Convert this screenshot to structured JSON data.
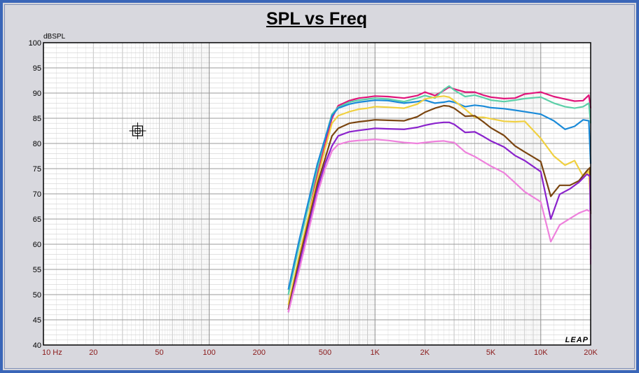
{
  "chart_data": {
    "type": "line",
    "title": "SPL vs Freq",
    "ylabel": "dBSPL",
    "xscale": "log",
    "xlim": [
      10,
      20000
    ],
    "ylim": [
      40,
      100
    ],
    "grid": true,
    "y_ticks": [
      40,
      45,
      50,
      55,
      60,
      65,
      70,
      75,
      80,
      85,
      90,
      95,
      100
    ],
    "x_ticks": [
      {
        "value": 10,
        "label": "10 Hz"
      },
      {
        "value": 20,
        "label": "20"
      },
      {
        "value": 50,
        "label": "50"
      },
      {
        "value": 100,
        "label": "100"
      },
      {
        "value": 200,
        "label": "200"
      },
      {
        "value": 500,
        "label": "500"
      },
      {
        "value": 1000,
        "label": "1K"
      },
      {
        "value": 2000,
        "label": "2K"
      },
      {
        "value": 5000,
        "label": "5K"
      },
      {
        "value": 10000,
        "label": "10K"
      },
      {
        "value": 20000,
        "label": "20K"
      }
    ],
    "watermark": "LEAP",
    "cursor_marker": {
      "x": 37,
      "y": 82.5
    },
    "series": [
      {
        "color": "#e0147a",
        "x": [
          300,
          350,
          400,
          450,
          500,
          550,
          600,
          700,
          800,
          900,
          1000,
          1200,
          1500,
          1800,
          2000,
          2300,
          2600,
          2800,
          3000,
          3500,
          4000,
          4500,
          5000,
          6000,
          7000,
          8000,
          10000,
          12000,
          14000,
          16000,
          18000,
          19500,
          20000
        ],
        "y": [
          47,
          58,
          66,
          74,
          80,
          85,
          87.5,
          88.5,
          89,
          89.2,
          89.4,
          89.3,
          89,
          89.5,
          90.2,
          89.5,
          90.5,
          91.2,
          90.8,
          90.2,
          90.2,
          89.6,
          89.2,
          88.9,
          89,
          89.8,
          90.2,
          89.3,
          88.8,
          88.4,
          88.5,
          89.6,
          87
        ]
      },
      {
        "color": "#5ccfa8",
        "x": [
          300,
          350,
          400,
          450,
          500,
          550,
          600,
          700,
          800,
          900,
          1000,
          1200,
          1500,
          1800,
          2000,
          2300,
          2600,
          2800,
          3000,
          3500,
          4000,
          4500,
          5000,
          6000,
          7000,
          8000,
          10000,
          12000,
          14000,
          16000,
          18000,
          19500,
          20000
        ],
        "y": [
          50,
          60,
          68,
          75,
          81,
          85.8,
          87.2,
          88.2,
          88.6,
          88.8,
          89,
          88.8,
          88.3,
          89,
          89.5,
          89,
          90.7,
          91.4,
          90.6,
          89.3,
          89.6,
          89.1,
          88.6,
          88.3,
          88.6,
          88.9,
          89.2,
          88,
          87.3,
          87,
          87.3,
          88,
          84
        ]
      },
      {
        "color": "#1a8ad8",
        "x": [
          300,
          350,
          400,
          450,
          500,
          550,
          600,
          700,
          800,
          900,
          1000,
          1200,
          1500,
          1800,
          2000,
          2300,
          2600,
          2800,
          3000,
          3500,
          4000,
          4500,
          5000,
          6000,
          7000,
          8000,
          10000,
          12000,
          14000,
          16000,
          18000,
          19500,
          20000
        ],
        "y": [
          51,
          61,
          69,
          76,
          81,
          85.5,
          87,
          87.8,
          88.2,
          88.4,
          88.6,
          88.5,
          88,
          88.3,
          88.6,
          88,
          88.2,
          88.4,
          88.2,
          87.3,
          87.6,
          87.4,
          87.1,
          86.9,
          86.6,
          86.3,
          85.8,
          84.5,
          82.8,
          83.4,
          84.7,
          84.5,
          76
        ]
      },
      {
        "color": "#f0d040",
        "x": [
          300,
          350,
          400,
          450,
          500,
          550,
          600,
          700,
          800,
          900,
          1000,
          1200,
          1500,
          1800,
          2000,
          2300,
          2600,
          2800,
          3000,
          3500,
          4000,
          4500,
          5000,
          6000,
          7000,
          8000,
          10000,
          12000,
          14000,
          16000,
          18000,
          19500,
          20000
        ],
        "y": [
          48,
          58,
          66,
          73,
          79,
          84,
          85.5,
          86.3,
          86.8,
          87,
          87.3,
          87.2,
          87,
          87.8,
          88.8,
          89.2,
          89.4,
          89.2,
          88.5,
          86.8,
          85.2,
          85.2,
          84.9,
          84.4,
          84.3,
          84.4,
          81,
          77.5,
          75.7,
          76.6,
          73.5,
          74.5,
          68
        ]
      },
      {
        "color": "#7a4510",
        "x": [
          300,
          350,
          400,
          450,
          500,
          550,
          600,
          700,
          800,
          900,
          1000,
          1200,
          1500,
          1800,
          2000,
          2300,
          2600,
          2800,
          3000,
          3500,
          4000,
          4500,
          5000,
          6000,
          7000,
          8000,
          10000,
          11500,
          13000,
          15000,
          17000,
          19000,
          19800,
          20000
        ],
        "y": [
          47,
          57,
          65,
          72,
          77,
          81.5,
          83,
          84,
          84.3,
          84.5,
          84.7,
          84.6,
          84.5,
          85.3,
          86.2,
          87,
          87.5,
          87.4,
          87,
          85.4,
          85.5,
          84.3,
          83.1,
          81.6,
          79.5,
          78.3,
          76.4,
          69.5,
          71.7,
          71.7,
          72.6,
          74.6,
          75.2,
          66
        ]
      },
      {
        "color": "#8a22cc",
        "x": [
          300,
          350,
          400,
          450,
          500,
          550,
          600,
          700,
          800,
          900,
          1000,
          1200,
          1500,
          1800,
          2000,
          2300,
          2600,
          2800,
          3000,
          3500,
          4000,
          4500,
          5000,
          6000,
          7000,
          8000,
          10000,
          11500,
          13000,
          15000,
          17000,
          19000,
          19800,
          20000
        ],
        "y": [
          46.5,
          56,
          64,
          71,
          76,
          79.5,
          81.5,
          82.3,
          82.6,
          82.8,
          83,
          82.9,
          82.8,
          83.2,
          83.6,
          84,
          84.2,
          84.2,
          83.8,
          82.2,
          82.3,
          81.4,
          80.5,
          79.3,
          77.6,
          76.6,
          74.4,
          65,
          69.9,
          71,
          72.3,
          73.9,
          73.5,
          59
        ]
      },
      {
        "color": "#ee80dc",
        "x": [
          300,
          350,
          400,
          450,
          500,
          550,
          600,
          700,
          800,
          900,
          1000,
          1200,
          1500,
          1800,
          2000,
          2300,
          2600,
          2800,
          3000,
          3500,
          4000,
          4500,
          5000,
          6000,
          7000,
          8000,
          10000,
          11500,
          13000,
          15000,
          17000,
          19000,
          19800,
          20000
        ],
        "y": [
          46.5,
          55,
          63,
          70,
          75,
          78.5,
          79.8,
          80.4,
          80.6,
          80.7,
          80.8,
          80.6,
          80.2,
          80,
          80.2,
          80.4,
          80.5,
          80.3,
          80.2,
          78.3,
          77.4,
          76.4,
          75.5,
          74.2,
          72.2,
          70.4,
          68.4,
          60.5,
          63.8,
          65.1,
          66.2,
          66.8,
          66.5,
          56
        ]
      }
    ]
  }
}
